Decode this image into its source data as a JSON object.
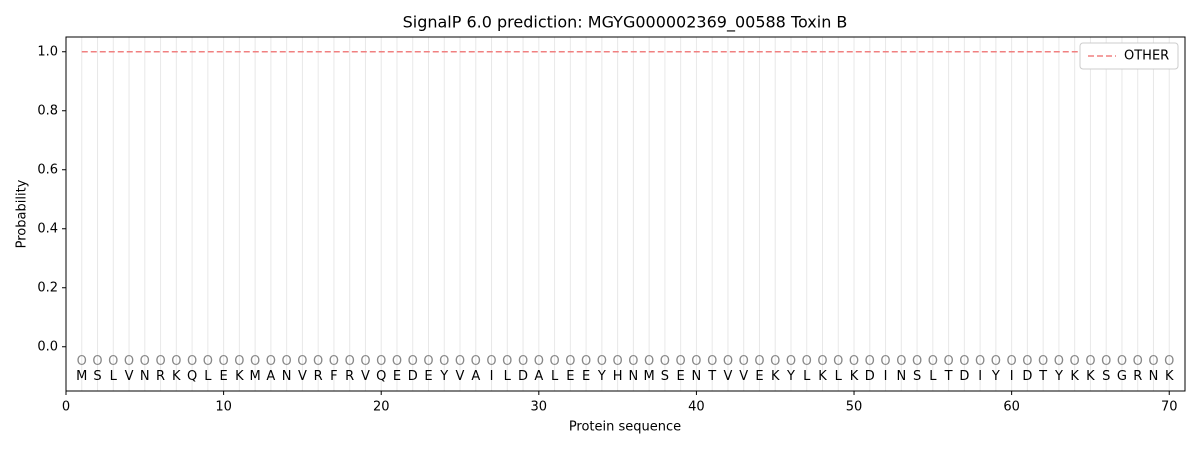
{
  "chart_data": {
    "type": "line",
    "title": "SignalP 6.0 prediction: MGYG000002369_00588 Toxin B",
    "xlabel": "Protein sequence",
    "ylabel": "Probability",
    "x": [
      1,
      2,
      3,
      4,
      5,
      6,
      7,
      8,
      9,
      10,
      11,
      12,
      13,
      14,
      15,
      16,
      17,
      18,
      19,
      20,
      21,
      22,
      23,
      24,
      25,
      26,
      27,
      28,
      29,
      30,
      31,
      32,
      33,
      34,
      35,
      36,
      37,
      38,
      39,
      40,
      41,
      42,
      43,
      44,
      45,
      46,
      47,
      48,
      49,
      50,
      51,
      52,
      53,
      54,
      55,
      56,
      57,
      58,
      59,
      60,
      61,
      62,
      63,
      64,
      65,
      66,
      67,
      68,
      69,
      70
    ],
    "sequence": [
      "M",
      "S",
      "L",
      "V",
      "N",
      "R",
      "K",
      "Q",
      "L",
      "E",
      "K",
      "M",
      "A",
      "N",
      "V",
      "R",
      "F",
      "R",
      "V",
      "Q",
      "E",
      "D",
      "E",
      "Y",
      "V",
      "A",
      "I",
      "L",
      "D",
      "A",
      "L",
      "E",
      "E",
      "Y",
      "H",
      "N",
      "M",
      "S",
      "E",
      "N",
      "T",
      "V",
      "V",
      "E",
      "K",
      "Y",
      "L",
      "K",
      "L",
      "K",
      "D",
      "I",
      "N",
      "S",
      "L",
      "T",
      "D",
      "I",
      "Y",
      "I",
      "D",
      "T",
      "Y",
      "K",
      "K",
      "S",
      "G",
      "R",
      "N",
      "K"
    ],
    "annotations": [
      "O",
      "O",
      "O",
      "O",
      "O",
      "O",
      "O",
      "O",
      "O",
      "O",
      "O",
      "O",
      "O",
      "O",
      "O",
      "O",
      "O",
      "O",
      "O",
      "O",
      "O",
      "O",
      "O",
      "O",
      "O",
      "O",
      "O",
      "O",
      "O",
      "O",
      "O",
      "O",
      "O",
      "O",
      "O",
      "O",
      "O",
      "O",
      "O",
      "O",
      "O",
      "O",
      "O",
      "O",
      "O",
      "O",
      "O",
      "O",
      "O",
      "O",
      "O",
      "O",
      "O",
      "O",
      "O",
      "O",
      "O",
      "O",
      "O",
      "O",
      "O",
      "O",
      "O",
      "O",
      "O",
      "O",
      "O",
      "O",
      "O",
      "O"
    ],
    "series": [
      {
        "name": "OTHER",
        "color": "#f08080",
        "values": [
          1,
          1,
          1,
          1,
          1,
          1,
          1,
          1,
          1,
          1,
          1,
          1,
          1,
          1,
          1,
          1,
          1,
          1,
          1,
          1,
          1,
          1,
          1,
          1,
          1,
          1,
          1,
          1,
          1,
          1,
          1,
          1,
          1,
          1,
          1,
          1,
          1,
          1,
          1,
          1,
          1,
          1,
          1,
          1,
          1,
          1,
          1,
          1,
          1,
          1,
          1,
          1,
          1,
          1,
          1,
          1,
          1,
          1,
          1,
          1,
          1,
          1,
          1,
          1,
          1,
          1,
          1,
          1,
          1,
          1
        ]
      }
    ],
    "xlim": [
      0,
      71
    ],
    "ylim": [
      -0.15,
      1.05
    ],
    "xticks": [
      0,
      10,
      20,
      30,
      40,
      50,
      60,
      70
    ],
    "yticks": [
      {
        "value": 0,
        "label": "0.0"
      },
      {
        "value": 0.2,
        "label": "0.2"
      },
      {
        "value": 0.4,
        "label": "0.4"
      },
      {
        "value": 0.6,
        "label": "0.6"
      },
      {
        "value": 0.8,
        "label": "0.8"
      },
      {
        "value": 1,
        "label": "1.0"
      }
    ],
    "legend": "upper right"
  }
}
